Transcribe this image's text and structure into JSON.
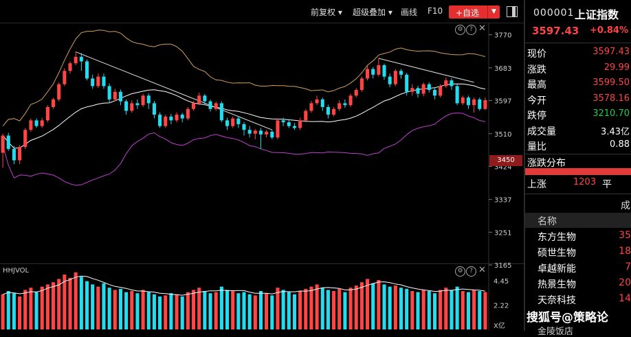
{
  "toolbar": {
    "adjust": "前复权",
    "overlay": "超级叠加",
    "draw": "画线",
    "f10": "F10",
    "add_fav": "+自选"
  },
  "volume_indicator": "HHJVOL",
  "price_axis": [
    "3770",
    "3683",
    "3597",
    "3510",
    "3424",
    "3337",
    "3251",
    "3165"
  ],
  "volume_axis": [
    "4.45",
    "2.22",
    "X亿"
  ],
  "crosshair_price": "3450",
  "quote": {
    "code": "000001",
    "name": "上证指数",
    "price": "3597.43",
    "change_pct": "+0.84%",
    "rows": [
      {
        "label": "现价",
        "value": "3597.43",
        "color": "#ff4545"
      },
      {
        "label": "涨跌",
        "value": "29.99",
        "color": "#ff4545"
      },
      {
        "label": "最高",
        "value": "3599.50",
        "color": "#ff4545"
      },
      {
        "label": "今开",
        "value": "3578.16",
        "color": "#ff4545"
      },
      {
        "label": "跌停",
        "value": "3210.70",
        "color": "#22d046"
      },
      {
        "label": "成交量",
        "value": "3.43亿",
        "color": "#ffffff"
      },
      {
        "label": "量比",
        "value": "0.88",
        "color": "#ffffff"
      }
    ],
    "distribution_label": "涨跌分布",
    "up_label": "上涨",
    "up_count": "1203",
    "flat_label": "平",
    "right_clip": "成",
    "list_header": "名称",
    "list": [
      {
        "name": "东方生物",
        "value": "35"
      },
      {
        "name": "硕世生物",
        "value": "18"
      },
      {
        "name": "卓越新能",
        "value": "7"
      },
      {
        "name": "热景生物",
        "value": "20"
      },
      {
        "name": "天奈科技",
        "value": "14"
      }
    ],
    "hidden_item": "金陵饭店"
  },
  "watermark": "搜狐号@策略论",
  "colors": {
    "up": "#ff4545",
    "down": "#22dcef",
    "ma_white": "#ffffff",
    "band_upper": "#d2a15a",
    "band_lower": "#c040d0",
    "trend": "#e0e0e0"
  },
  "chart_data": {
    "type": "candlestick",
    "ylim": [
      3165,
      3800
    ],
    "y_ticks": [
      3770,
      3683,
      3597,
      3510,
      3424,
      3337,
      3251,
      3165
    ],
    "candles": [
      [
        3460,
        3505,
        3420,
        3510
      ],
      [
        3505,
        3470,
        3465,
        3512
      ],
      [
        3470,
        3440,
        3430,
        3478
      ],
      [
        3440,
        3475,
        3430,
        3480
      ],
      [
        3475,
        3520,
        3470,
        3525
      ],
      [
        3520,
        3545,
        3515,
        3550
      ],
      [
        3545,
        3530,
        3525,
        3550
      ],
      [
        3530,
        3545,
        3525,
        3552
      ],
      [
        3545,
        3580,
        3540,
        3585
      ],
      [
        3580,
        3600,
        3575,
        3605
      ],
      [
        3600,
        3640,
        3595,
        3645
      ],
      [
        3640,
        3675,
        3635,
        3682
      ],
      [
        3675,
        3695,
        3668,
        3700
      ],
      [
        3695,
        3712,
        3690,
        3725
      ],
      [
        3712,
        3700,
        3675,
        3722
      ],
      [
        3700,
        3655,
        3650,
        3705
      ],
      [
        3655,
        3635,
        3628,
        3665
      ],
      [
        3635,
        3660,
        3630,
        3668
      ],
      [
        3660,
        3635,
        3628,
        3668
      ],
      [
        3635,
        3600,
        3590,
        3642
      ],
      [
        3600,
        3620,
        3595,
        3628
      ],
      [
        3620,
        3595,
        3585,
        3626
      ],
      [
        3595,
        3570,
        3560,
        3600
      ],
      [
        3570,
        3590,
        3565,
        3598
      ],
      [
        3590,
        3585,
        3575,
        3600
      ],
      [
        3585,
        3610,
        3580,
        3615
      ],
      [
        3610,
        3590,
        3575,
        3616
      ],
      [
        3590,
        3560,
        3550,
        3596
      ],
      [
        3560,
        3530,
        3525,
        3566
      ],
      [
        3530,
        3555,
        3525,
        3560
      ],
      [
        3555,
        3545,
        3535,
        3562
      ],
      [
        3545,
        3560,
        3540,
        3566
      ],
      [
        3560,
        3550,
        3540,
        3565
      ],
      [
        3550,
        3575,
        3545,
        3580
      ],
      [
        3575,
        3590,
        3570,
        3596
      ],
      [
        3590,
        3610,
        3585,
        3618
      ],
      [
        3610,
        3595,
        3585,
        3614
      ],
      [
        3595,
        3575,
        3568,
        3600
      ],
      [
        3575,
        3590,
        3570,
        3595
      ],
      [
        3590,
        3545,
        3540,
        3595
      ],
      [
        3545,
        3530,
        3520,
        3552
      ],
      [
        3530,
        3550,
        3525,
        3555
      ],
      [
        3550,
        3535,
        3525,
        3556
      ],
      [
        3535,
        3520,
        3505,
        3540
      ],
      [
        3520,
        3510,
        3500,
        3530
      ],
      [
        3510,
        3518,
        3495,
        3522
      ],
      [
        3518,
        3508,
        3470,
        3525
      ],
      [
        3508,
        3515,
        3500,
        3520
      ],
      [
        3515,
        3500,
        3495,
        3520
      ],
      [
        3500,
        3545,
        3495,
        3550
      ],
      [
        3545,
        3540,
        3530,
        3552
      ],
      [
        3540,
        3530,
        3525,
        3548
      ],
      [
        3530,
        3525,
        3520,
        3538
      ],
      [
        3525,
        3545,
        3520,
        3552
      ],
      [
        3545,
        3570,
        3540,
        3575
      ],
      [
        3570,
        3590,
        3565,
        3596
      ],
      [
        3590,
        3600,
        3585,
        3610
      ],
      [
        3600,
        3580,
        3570,
        3605
      ],
      [
        3580,
        3560,
        3550,
        3586
      ],
      [
        3560,
        3575,
        3555,
        3580
      ],
      [
        3575,
        3590,
        3570,
        3598
      ],
      [
        3590,
        3585,
        3578,
        3600
      ],
      [
        3585,
        3610,
        3580,
        3615
      ],
      [
        3610,
        3625,
        3605,
        3630
      ],
      [
        3625,
        3655,
        3620,
        3660
      ],
      [
        3655,
        3680,
        3650,
        3690
      ],
      [
        3680,
        3665,
        3655,
        3685
      ],
      [
        3665,
        3690,
        3660,
        3708
      ],
      [
        3690,
        3660,
        3652,
        3694
      ],
      [
        3660,
        3640,
        3632,
        3668
      ],
      [
        3640,
        3675,
        3635,
        3680
      ],
      [
        3675,
        3665,
        3655,
        3680
      ],
      [
        3665,
        3620,
        3610,
        3670
      ],
      [
        3620,
        3630,
        3610,
        3640
      ],
      [
        3630,
        3615,
        3605,
        3636
      ],
      [
        3615,
        3640,
        3608,
        3645
      ],
      [
        3640,
        3625,
        3618,
        3645
      ],
      [
        3625,
        3610,
        3600,
        3632
      ],
      [
        3610,
        3635,
        3605,
        3640
      ],
      [
        3635,
        3650,
        3630,
        3658
      ],
      [
        3650,
        3635,
        3625,
        3656
      ],
      [
        3635,
        3590,
        3585,
        3640
      ],
      [
        3590,
        3605,
        3585,
        3610
      ],
      [
        3605,
        3585,
        3575,
        3610
      ],
      [
        3585,
        3600,
        3565,
        3605
      ],
      [
        3600,
        3575,
        3570,
        3605
      ],
      [
        3575,
        3598,
        3572,
        3605
      ]
    ],
    "volumes": [
      3.2,
      3.5,
      3.3,
      3.0,
      3.6,
      3.8,
      3.4,
      3.9,
      4.1,
      4.3,
      4.6,
      5.0,
      4.7,
      5.2,
      4.8,
      4.4,
      4.1,
      3.9,
      4.2,
      3.8,
      3.6,
      3.7,
      3.4,
      3.5,
      3.3,
      3.6,
      3.4,
      3.2,
      3.0,
      3.1,
      3.3,
      3.2,
      3.0,
      3.4,
      3.6,
      3.8,
      3.5,
      3.3,
      3.4,
      3.9,
      3.6,
      3.5,
      3.3,
      3.4,
      3.2,
      3.1,
      3.5,
      3.3,
      3.1,
      3.8,
      3.6,
      3.4,
      3.2,
      3.5,
      3.7,
      3.9,
      4.1,
      3.8,
      3.6,
      3.5,
      3.7,
      3.4,
      3.8,
      4.0,
      4.3,
      4.6,
      4.2,
      4.5,
      4.1,
      3.9,
      4.0,
      3.8,
      3.7,
      3.5,
      3.4,
      3.6,
      3.5,
      3.3,
      3.6,
      3.8,
      3.6,
      3.9,
      3.5,
      3.4,
      3.6,
      3.5,
      3.4
    ],
    "vol_ylim": [
      0,
      5.5
    ]
  }
}
